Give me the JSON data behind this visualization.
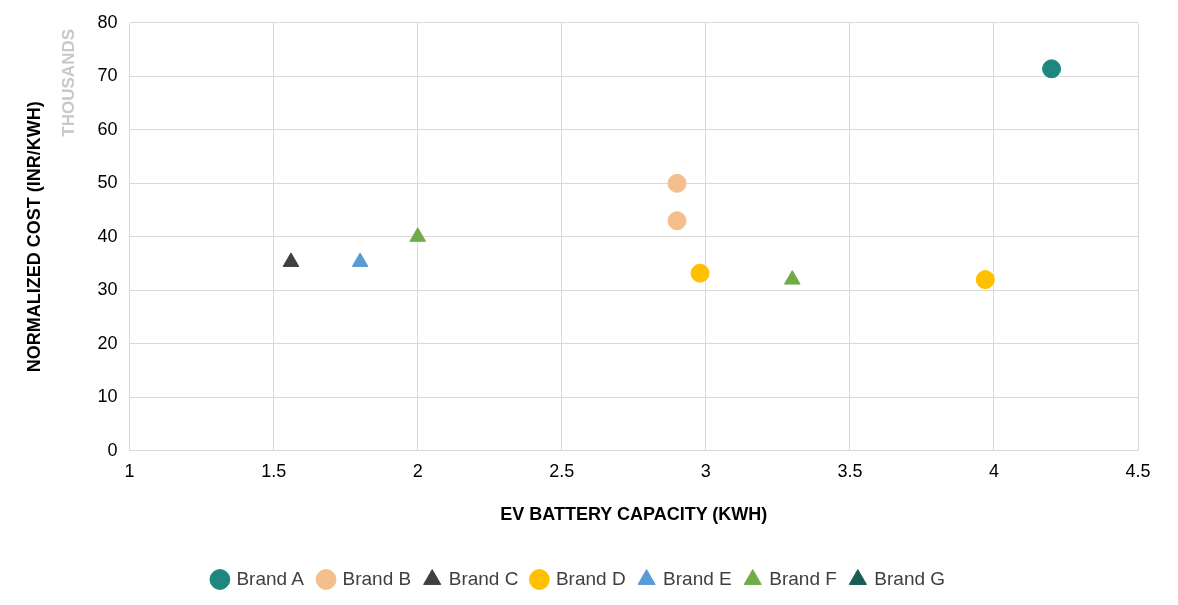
{
  "chart_data": {
    "type": "scatter",
    "xlabel": "EV BATTERY CAPACITY (KWH)",
    "ylabel": "NORMALIZED COST (INR/KWH)",
    "annotations": [
      "THOUSANDS"
    ],
    "xlim": [
      1,
      4.5
    ],
    "xticks": [
      1,
      1.5,
      2,
      2.5,
      3,
      3.5,
      4,
      4.5
    ],
    "ylim": [
      0,
      80
    ],
    "yticks": [
      0,
      10,
      20,
      30,
      40,
      50,
      60,
      70,
      80
    ],
    "grid": true,
    "legend": "bottom",
    "series": [
      {
        "name": "Brand A",
        "color": "#1f877d",
        "marker": "circle",
        "x": [
          4.2
        ],
        "values": [
          71.4
        ]
      },
      {
        "name": "Brand B",
        "color": "#f4bf8c",
        "marker": "circle",
        "x": [
          2.9,
          2.9
        ],
        "values": [
          50,
          43
        ]
      },
      {
        "name": "Brand C",
        "color": "#404040",
        "marker": "triangle",
        "x": [
          1.56
        ],
        "values": [
          35.3
        ]
      },
      {
        "name": "Brand D",
        "color": "#ffc000",
        "marker": "circle",
        "x": [
          2.98,
          3.97
        ],
        "values": [
          33.2,
          32
        ]
      },
      {
        "name": "Brand E",
        "color": "#5b9bd5",
        "marker": "triangle",
        "x": [
          1.8
        ],
        "values": [
          35.3
        ]
      },
      {
        "name": "Brand F",
        "color": "#70ad47",
        "marker": "triangle",
        "x": [
          2.0,
          3.3
        ],
        "values": [
          40,
          32
        ]
      },
      {
        "name": "Brand G",
        "color": "#1a5c55",
        "marker": "triangle"
      }
    ]
  }
}
